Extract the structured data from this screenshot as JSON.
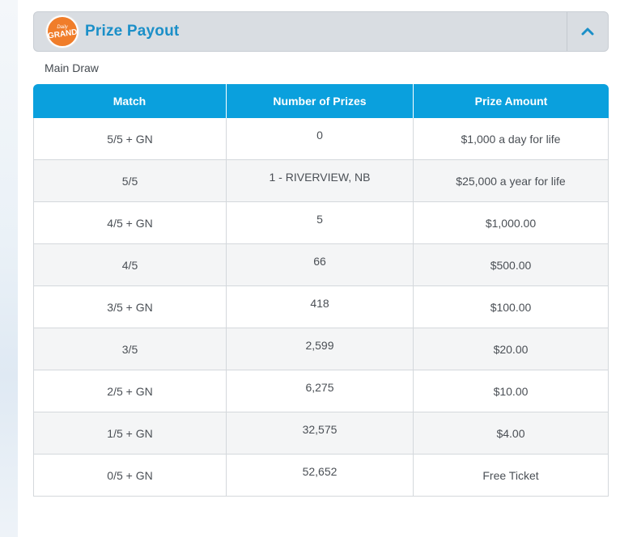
{
  "panel": {
    "logo": {
      "line1": "Daily",
      "line2": "GRAND"
    },
    "title": "Prize Payout",
    "toggle_icon": "chevron-up-icon",
    "subtitle": "Main Draw"
  },
  "table": {
    "headers": [
      "Match",
      "Number of Prizes",
      "Prize Amount"
    ],
    "rows": [
      {
        "match": "5/5 + GN",
        "count": "0",
        "amount": "$1,000 a day for life"
      },
      {
        "match": "5/5",
        "count": "1 - RIVERVIEW, NB",
        "amount": "$25,000 a year for life"
      },
      {
        "match": "4/5 + GN",
        "count": "5",
        "amount": "$1,000.00"
      },
      {
        "match": "4/5",
        "count": "66",
        "amount": "$500.00"
      },
      {
        "match": "3/5 + GN",
        "count": "418",
        "amount": "$100.00"
      },
      {
        "match": "3/5",
        "count": "2,599",
        "amount": "$20.00"
      },
      {
        "match": "2/5 + GN",
        "count": "6,275",
        "amount": "$10.00"
      },
      {
        "match": "1/5 + GN",
        "count": "32,575",
        "amount": "$4.00"
      },
      {
        "match": "0/5 + GN",
        "count": "52,652",
        "amount": "Free Ticket"
      }
    ]
  },
  "colors": {
    "header_bg": "#d9dde2",
    "title": "#1b8fc8",
    "table_header": "#0aa0dd",
    "logo": "#f07d2a"
  }
}
